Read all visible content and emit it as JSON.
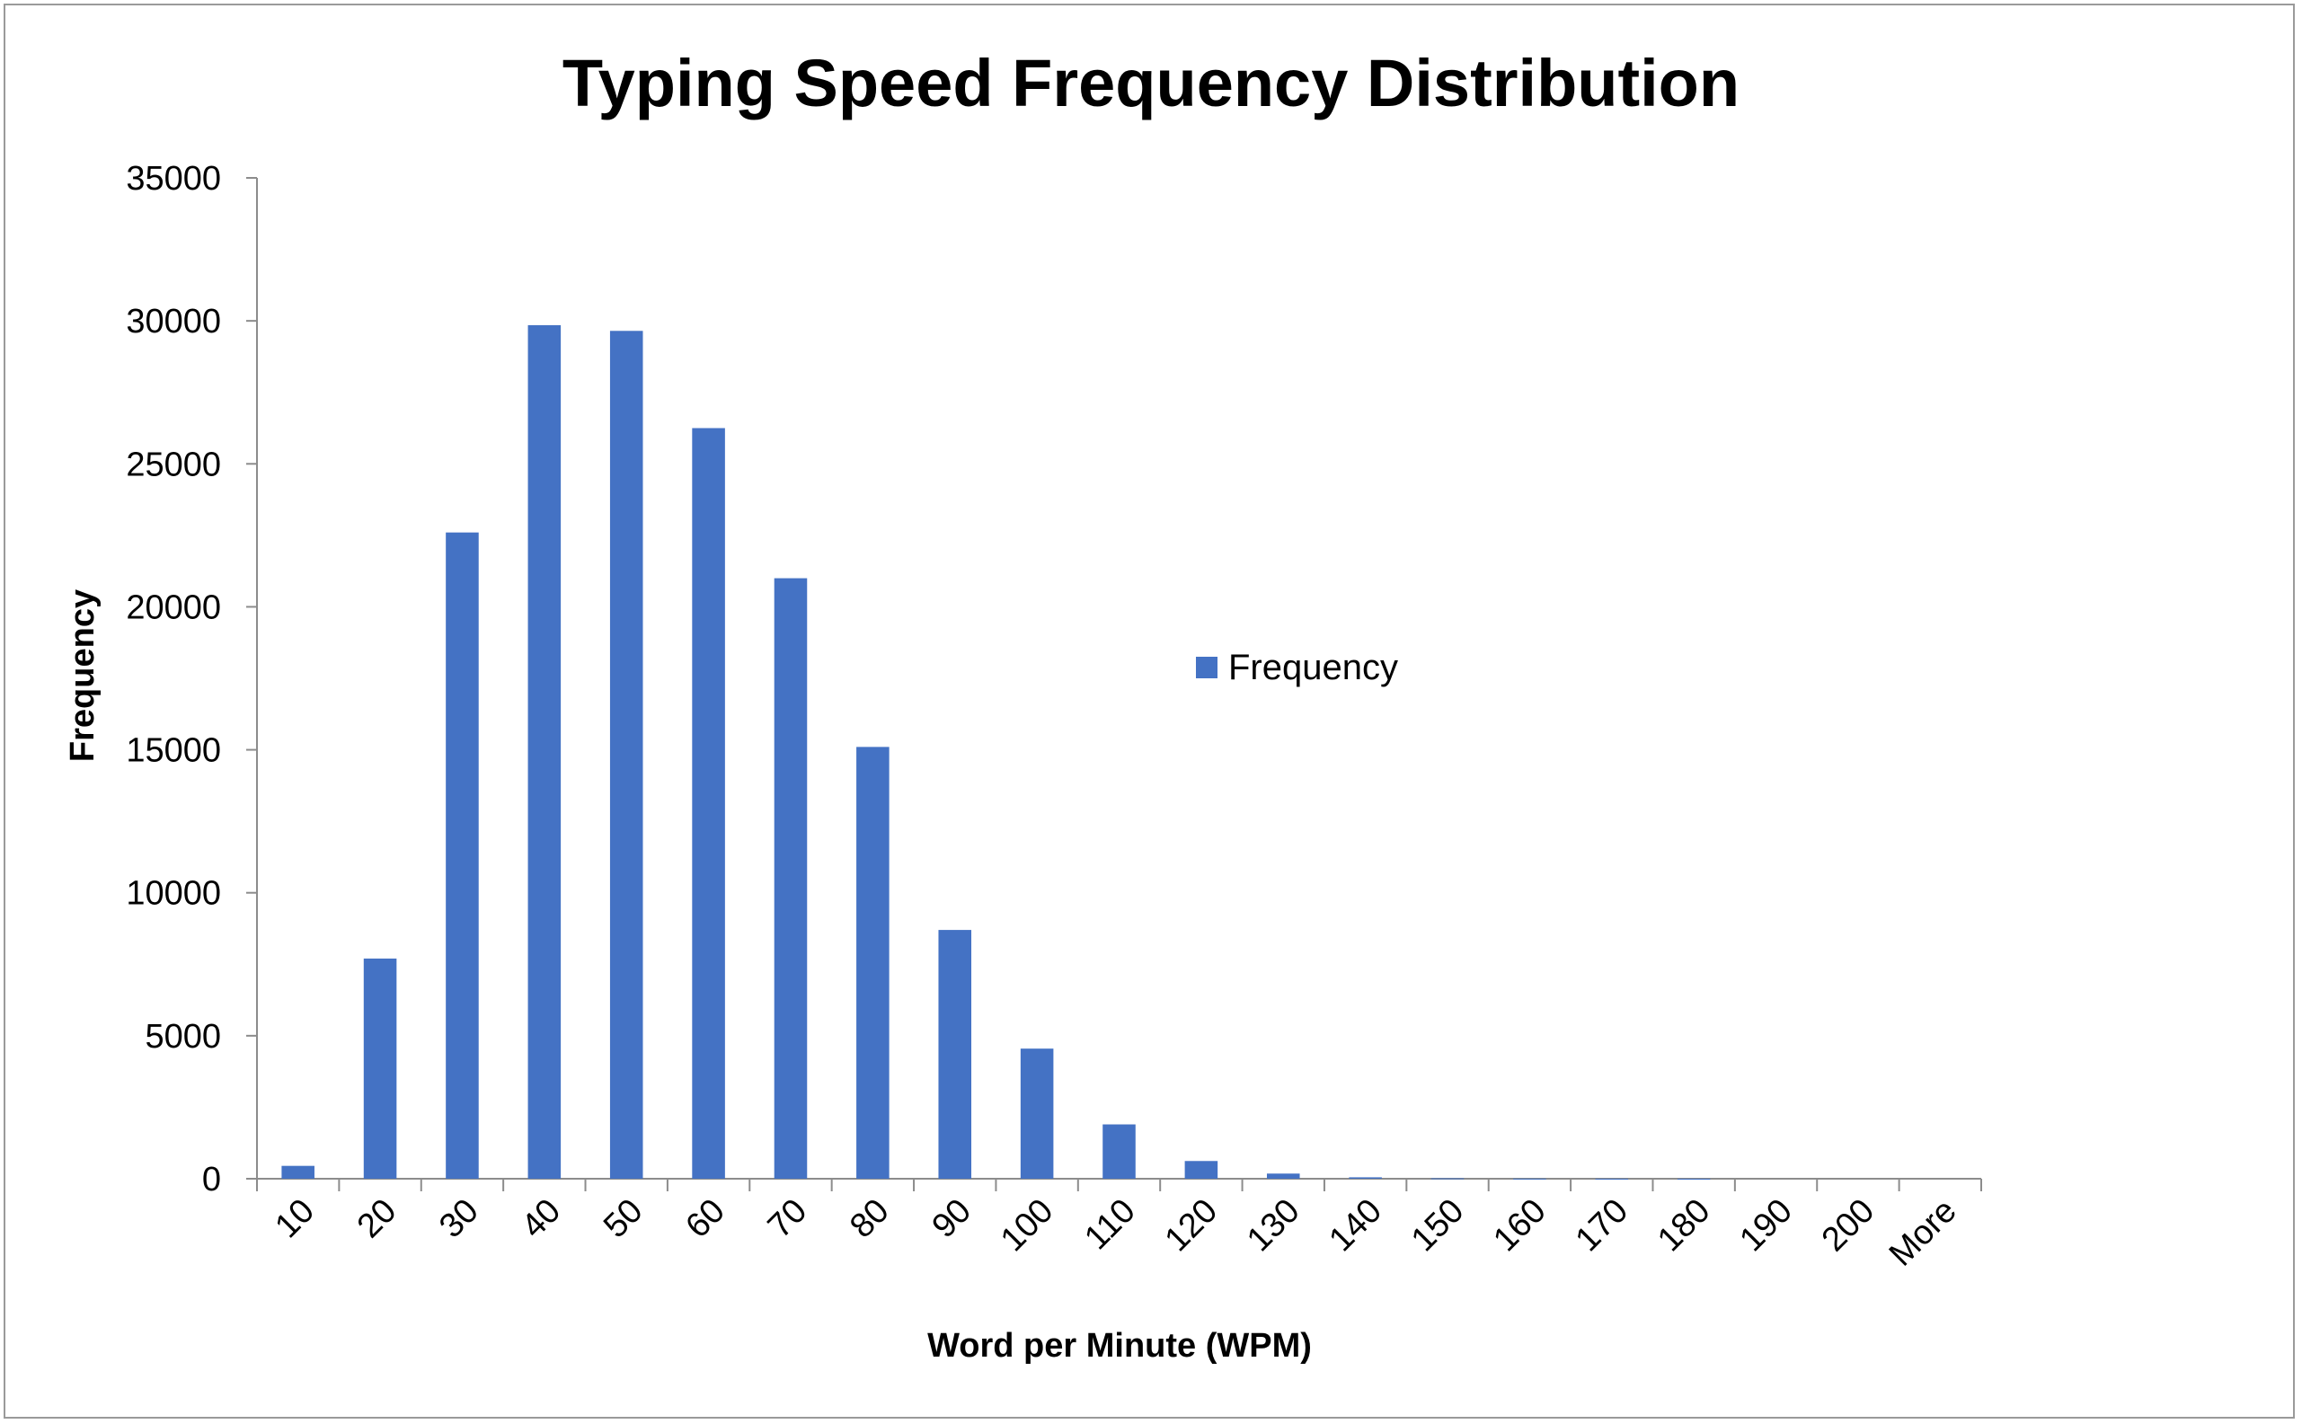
{
  "chart_data": {
    "type": "bar",
    "title": "Typing Speed Frequency Distribution",
    "xlabel": "Word per Minute (WPM)",
    "ylabel": "Frequency",
    "ylim": [
      0,
      35000
    ],
    "yticks": [
      0,
      5000,
      10000,
      15000,
      20000,
      25000,
      30000,
      35000
    ],
    "categories": [
      "10",
      "20",
      "30",
      "40",
      "50",
      "60",
      "70",
      "80",
      "90",
      "100",
      "110",
      "120",
      "130",
      "140",
      "150",
      "160",
      "170",
      "180",
      "190",
      "200",
      "More"
    ],
    "series": [
      {
        "name": "Frequency",
        "color": "#4472C4",
        "values": [
          450,
          7700,
          22600,
          29850,
          29650,
          26250,
          21000,
          15100,
          8700,
          4550,
          1900,
          620,
          180,
          50,
          15,
          5,
          2,
          1,
          0,
          0,
          0
        ]
      }
    ],
    "grid": false,
    "legend": "center-right"
  }
}
